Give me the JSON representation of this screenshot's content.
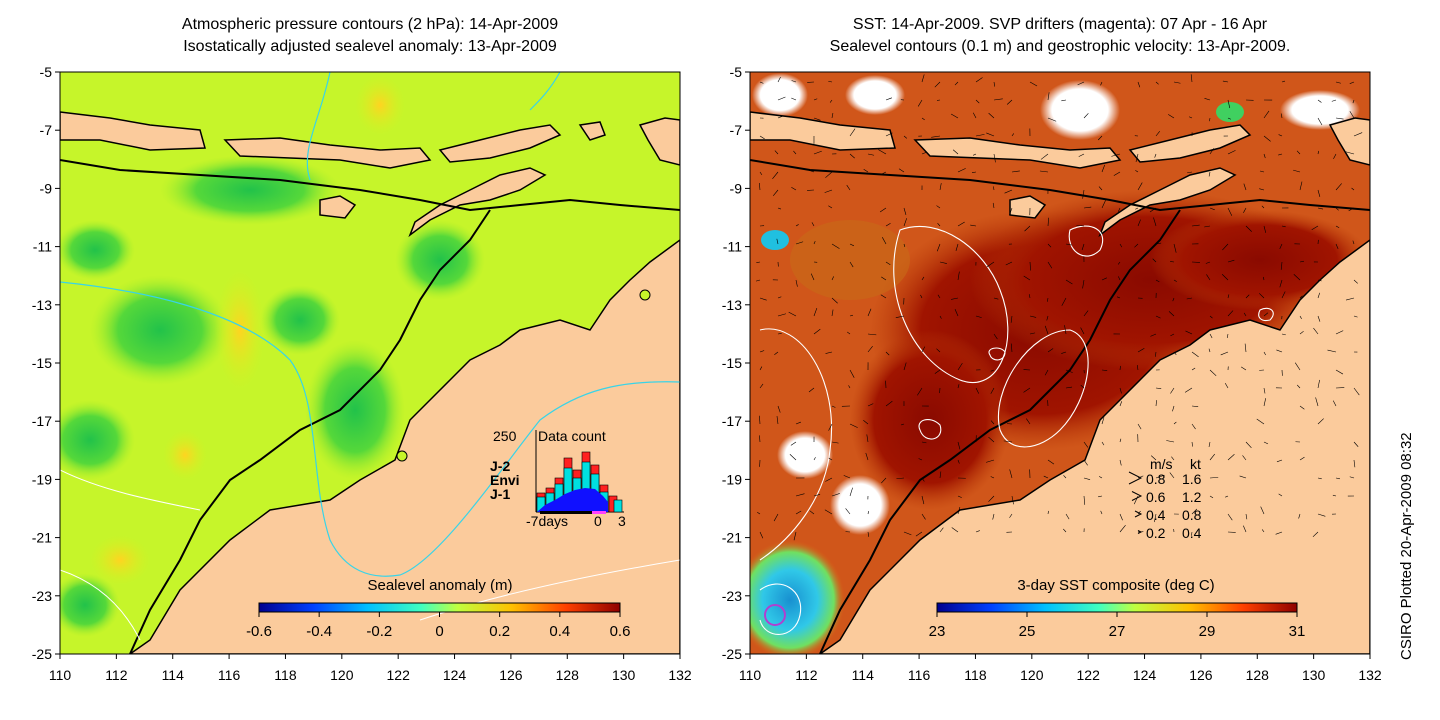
{
  "left_map": {
    "title_line1": "Atmospheric pressure contours (2 hPa): 14-Apr-2009",
    "title_line2": "Isostatically adjusted sealevel anomaly: 13-Apr-2009",
    "colorbar_label": "Sealevel anomaly (m)",
    "colorbar_ticks": [
      "-0.6",
      "-0.4",
      "-0.2",
      "0",
      "0.2",
      "0.4",
      "0.6"
    ],
    "inset": {
      "title": "Data count",
      "ymax_label": "250",
      "x_labels": [
        "-7days",
        "0",
        "3"
      ],
      "legend": [
        {
          "label": "J-2",
          "color": "#ff2020"
        },
        {
          "label": "Envi",
          "color": "#00e0e0"
        },
        {
          "label": "J-1",
          "color": "#1010ff"
        }
      ]
    }
  },
  "right_map": {
    "title_line1": "SST: 14-Apr-2009. SVP drifters (magenta): 07 Apr - 16 Apr",
    "title_line2": "Sealevel contours (0.1 m) and geostrophic velocity: 13-Apr-2009.",
    "colorbar_label": "3-day SST composite (deg C)",
    "colorbar_ticks": [
      "23",
      "25",
      "27",
      "29",
      "31"
    ],
    "velocity_legend": {
      "header_ms": "m/s",
      "header_kt": "kt",
      "rows": [
        {
          "ms": "0.8",
          "kt": "1.6"
        },
        {
          "ms": "0.6",
          "kt": "1.2"
        },
        {
          "ms": "0.4",
          "kt": "0.8"
        },
        {
          "ms": "0.2",
          "kt": "0.4"
        }
      ]
    }
  },
  "axes": {
    "x_ticks": [
      "110",
      "112",
      "114",
      "116",
      "118",
      "120",
      "122",
      "124",
      "126",
      "128",
      "130",
      "132"
    ],
    "y_ticks": [
      "-5",
      "-7",
      "-9",
      "-11",
      "-13",
      "-15",
      "-17",
      "-19",
      "-21",
      "-23",
      "-25"
    ]
  },
  "credit": "CSIRO Plotted 20-Apr-2009 08:32"
}
